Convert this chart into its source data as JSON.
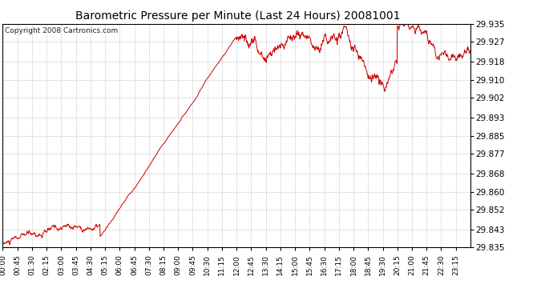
{
  "title": "Barometric Pressure per Minute (Last 24 Hours) 20081001",
  "copyright": "Copyright 2008 Cartronics.com",
  "line_color": "#cc0000",
  "bg_color": "#ffffff",
  "plot_bg_color": "#ffffff",
  "grid_color": "#bbbbbb",
  "yticks": [
    29.835,
    29.843,
    29.852,
    29.86,
    29.868,
    29.877,
    29.885,
    29.893,
    29.902,
    29.91,
    29.918,
    29.927,
    29.935
  ],
  "ymin": 29.835,
  "ymax": 29.935,
  "xtick_labels": [
    "00:00",
    "00:45",
    "01:30",
    "02:15",
    "03:00",
    "03:45",
    "04:30",
    "05:15",
    "06:00",
    "06:45",
    "07:30",
    "08:15",
    "09:00",
    "09:45",
    "10:30",
    "11:15",
    "12:00",
    "12:45",
    "13:30",
    "14:15",
    "15:00",
    "15:45",
    "16:30",
    "17:15",
    "18:00",
    "18:45",
    "19:30",
    "20:15",
    "21:00",
    "21:45",
    "22:30",
    "23:15"
  ],
  "n_points": 1440,
  "seed": 42
}
